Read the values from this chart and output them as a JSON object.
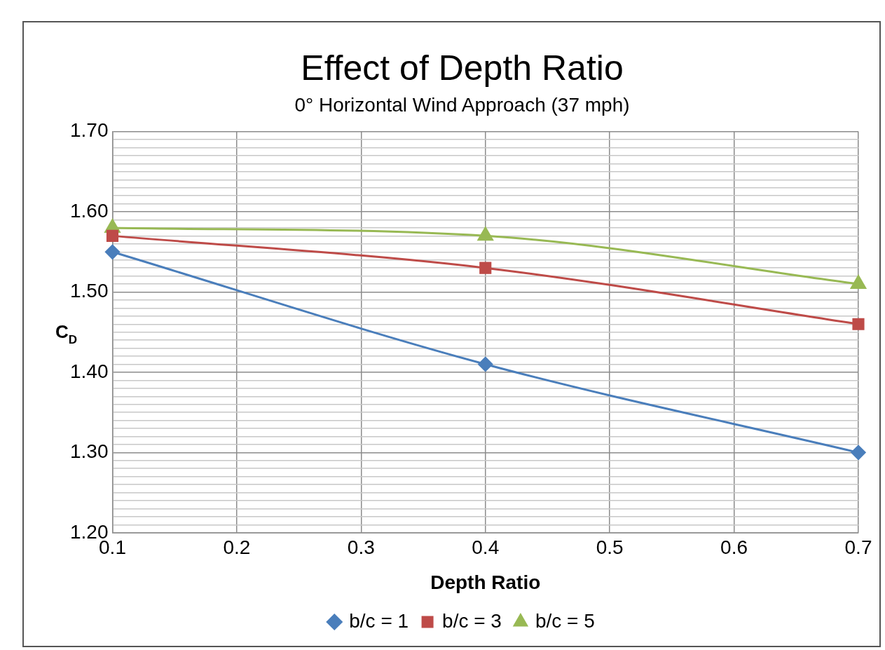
{
  "chart_data": {
    "type": "line",
    "title": "Effect of Depth Ratio",
    "subtitle": "0° Horizontal Wind Approach (37 mph)",
    "xlabel": "Depth Ratio",
    "ylabel": "C$_{D}$",
    "x": [
      0.1,
      0.4,
      0.7
    ],
    "series": [
      {
        "name": "b/c = 1",
        "color": "#4a7ebb",
        "marker": "diamond",
        "values": [
          1.55,
          1.41,
          1.3
        ]
      },
      {
        "name": "b/c = 3",
        "color": "#be4b48",
        "marker": "square",
        "values": [
          1.57,
          1.53,
          1.46
        ]
      },
      {
        "name": "b/c = 5",
        "color": "#98b954",
        "marker": "triangle",
        "values": [
          1.58,
          1.57,
          1.51
        ]
      }
    ],
    "xlim": [
      0.1,
      0.7
    ],
    "xticks": [
      0.1,
      0.2,
      0.3,
      0.4,
      0.5,
      0.6,
      0.7
    ],
    "ylim": [
      1.2,
      1.7
    ],
    "yticks": [
      {
        "value": 1.2,
        "label": "1.20"
      },
      {
        "value": 1.21,
        "label": null
      },
      {
        "value": 1.22,
        "label": null
      },
      {
        "value": 1.23,
        "label": null
      },
      {
        "value": 1.24,
        "label": null
      },
      {
        "value": 1.25,
        "label": null
      },
      {
        "value": 1.26,
        "label": null
      },
      {
        "value": 1.27,
        "label": null
      },
      {
        "value": 1.28,
        "label": null
      },
      {
        "value": 1.29,
        "label": null
      },
      {
        "value": 1.3,
        "label": "1.30"
      },
      {
        "value": 1.31,
        "label": null
      },
      {
        "value": 1.32,
        "label": null
      },
      {
        "value": 1.33,
        "label": null
      },
      {
        "value": 1.34,
        "label": null
      },
      {
        "value": 1.35,
        "label": null
      },
      {
        "value": 1.36,
        "label": null
      },
      {
        "value": 1.37,
        "label": null
      },
      {
        "value": 1.38,
        "label": null
      },
      {
        "value": 1.39,
        "label": null
      },
      {
        "value": 1.4,
        "label": "1.40"
      },
      {
        "value": 1.41,
        "label": null
      },
      {
        "value": 1.42,
        "label": null
      },
      {
        "value": 1.43,
        "label": null
      },
      {
        "value": 1.44,
        "label": null
      },
      {
        "value": 1.45,
        "label": null
      },
      {
        "value": 1.46,
        "label": null
      },
      {
        "value": 1.47,
        "label": null
      },
      {
        "value": 1.48,
        "label": null
      },
      {
        "value": 1.49,
        "label": null
      },
      {
        "value": 1.5,
        "label": "1.50"
      },
      {
        "value": 1.51,
        "label": null
      },
      {
        "value": 1.52,
        "label": null
      },
      {
        "value": 1.53,
        "label": null
      },
      {
        "value": 1.54,
        "label": null
      },
      {
        "value": 1.55,
        "label": null
      },
      {
        "value": 1.56,
        "label": null
      },
      {
        "value": 1.57,
        "label": null
      },
      {
        "value": 1.58,
        "label": null
      },
      {
        "value": 1.59,
        "label": null
      },
      {
        "value": 1.6,
        "label": "1.60"
      },
      {
        "value": 1.61,
        "label": null
      },
      {
        "value": 1.62,
        "label": null
      },
      {
        "value": 1.63,
        "label": null
      },
      {
        "value": 1.64,
        "label": null
      },
      {
        "value": 1.65,
        "label": null
      },
      {
        "value": 1.66,
        "label": null
      },
      {
        "value": 1.67,
        "label": null
      },
      {
        "value": 1.68,
        "label": null
      },
      {
        "value": 1.69,
        "label": null
      },
      {
        "value": 1.7,
        "label": "1.70"
      }
    ],
    "grid": true,
    "legend": "bottom",
    "line_style": "solid"
  }
}
